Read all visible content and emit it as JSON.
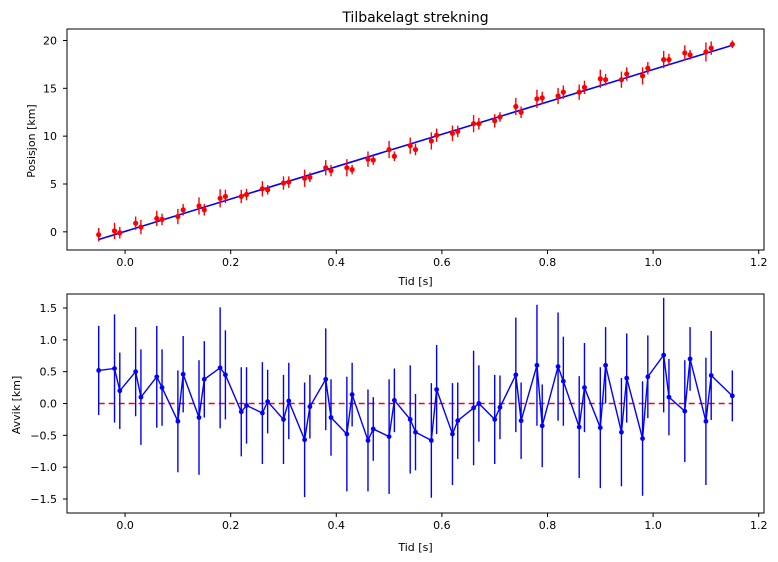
{
  "chart_data": [
    {
      "type": "scatter",
      "title": "Tilbakelagt strekning",
      "xlabel": "Tid [s]",
      "ylabel": "Posisjon [km]",
      "xlim": [
        -0.11,
        1.21
      ],
      "ylim": [
        -1.9,
        21.2
      ],
      "xticks": [
        0.0,
        0.2,
        0.4,
        0.6,
        0.8,
        1.0,
        1.2
      ],
      "xtick_labels": [
        "0.0",
        "0.2",
        "0.4",
        "0.6",
        "0.8",
        "1.0",
        "1.2"
      ],
      "yticks": [
        0,
        5,
        10,
        15,
        20
      ],
      "ytick_labels": [
        "0",
        "5",
        "10",
        "15",
        "20"
      ],
      "colors": {
        "points": "#ff0000",
        "fit": "#0000ff"
      },
      "fit_line": {
        "x": [
          -0.05,
          1.15
        ],
        "y": [
          -0.8,
          19.5
        ]
      },
      "series": [
        {
          "x": [
            -0.05,
            -0.02,
            -0.01,
            0.02,
            0.03,
            0.06,
            0.07,
            0.1,
            0.11,
            0.14,
            0.15,
            0.18,
            0.19,
            0.22,
            0.23,
            0.26,
            0.27,
            0.3,
            0.31,
            0.34,
            0.35,
            0.38,
            0.39,
            0.42,
            0.43,
            0.46,
            0.47,
            0.5,
            0.51,
            0.54,
            0.55,
            0.58,
            0.59,
            0.62,
            0.63,
            0.66,
            0.67,
            0.7,
            0.71,
            0.74,
            0.75,
            0.78,
            0.79,
            0.82,
            0.83,
            0.86,
            0.87,
            0.9,
            0.91,
            0.94,
            0.95,
            0.98,
            0.99,
            1.02,
            1.03,
            1.06,
            1.07,
            1.1,
            1.11,
            1.15
          ],
          "y": [
            -0.3,
            0.1,
            -0.1,
            0.9,
            0.5,
            1.4,
            1.3,
            1.6,
            2.3,
            2.7,
            2.3,
            3.5,
            3.7,
            3.7,
            3.9,
            4.5,
            4.4,
            5.1,
            5.2,
            5.6,
            5.7,
            6.7,
            6.4,
            6.7,
            6.5,
            7.6,
            7.5,
            8.6,
            7.9,
            9.0,
            8.6,
            9.5,
            10.1,
            10.3,
            10.5,
            11.3,
            11.3,
            11.6,
            12.0,
            13.1,
            12.5,
            13.9,
            14.0,
            14.2,
            14.6,
            14.6,
            15.1,
            16.0,
            15.9,
            15.9,
            16.5,
            16.3,
            17.1,
            18.0,
            18.0,
            18.7,
            18.5,
            18.8,
            19.2,
            19.6
          ],
          "err": [
            0.7,
            0.85,
            0.6,
            0.7,
            0.75,
            0.8,
            0.6,
            0.8,
            0.6,
            0.9,
            0.6,
            0.95,
            0.7,
            0.7,
            0.6,
            0.8,
            0.5,
            0.7,
            0.6,
            0.9,
            0.5,
            0.8,
            0.6,
            0.9,
            0.5,
            0.8,
            0.5,
            0.9,
            0.5,
            0.85,
            0.6,
            0.9,
            0.7,
            0.8,
            0.6,
            0.9,
            0.6,
            0.7,
            0.5,
            0.9,
            0.6,
            0.95,
            0.65,
            0.85,
            0.7,
            0.8,
            0.7,
            0.95,
            0.6,
            0.85,
            0.7,
            0.9,
            0.65,
            0.9,
            0.6,
            0.8,
            0.5,
            1.0,
            0.7,
            0.4
          ]
        }
      ],
      "grid": false,
      "legend": "none"
    },
    {
      "type": "line",
      "title": "",
      "xlabel": "Tid [s]",
      "ylabel": "Avvik [km]",
      "xlim": [
        -0.11,
        1.21
      ],
      "ylim": [
        -1.72,
        1.72
      ],
      "xticks": [
        0.0,
        0.2,
        0.4,
        0.6,
        0.8,
        1.0,
        1.2
      ],
      "xtick_labels": [
        "0.0",
        "0.2",
        "0.4",
        "0.6",
        "0.8",
        "1.0",
        "1.2"
      ],
      "yticks": [
        -1.5,
        -1.0,
        -0.5,
        0.0,
        0.5,
        1.0,
        1.5
      ],
      "ytick_labels": [
        "−1.5",
        "−1.0",
        "−0.5",
        "0.0",
        "0.5",
        "1.0",
        "1.5"
      ],
      "colors": {
        "series": "#0000ff",
        "zero_line": "#ff0000"
      },
      "reference_line": {
        "y": 0.0,
        "style": "dashed"
      },
      "series": [
        {
          "x": [
            -0.05,
            -0.02,
            -0.01,
            0.02,
            0.03,
            0.06,
            0.07,
            0.1,
            0.11,
            0.14,
            0.15,
            0.18,
            0.19,
            0.22,
            0.23,
            0.26,
            0.27,
            0.3,
            0.31,
            0.34,
            0.35,
            0.38,
            0.39,
            0.42,
            0.43,
            0.46,
            0.47,
            0.5,
            0.51,
            0.54,
            0.55,
            0.58,
            0.59,
            0.62,
            0.63,
            0.66,
            0.67,
            0.7,
            0.71,
            0.74,
            0.75,
            0.78,
            0.79,
            0.82,
            0.83,
            0.86,
            0.87,
            0.9,
            0.91,
            0.94,
            0.95,
            0.98,
            0.99,
            1.02,
            1.03,
            1.06,
            1.07,
            1.1,
            1.11,
            1.15
          ],
          "y": [
            0.52,
            0.55,
            0.2,
            0.5,
            0.1,
            0.42,
            0.25,
            -0.28,
            0.46,
            -0.22,
            0.38,
            0.56,
            0.45,
            -0.13,
            -0.03,
            -0.15,
            0.03,
            -0.25,
            0.04,
            -0.57,
            -0.05,
            0.38,
            -0.22,
            -0.48,
            0.14,
            -0.58,
            -0.4,
            -0.52,
            0.05,
            -0.25,
            -0.45,
            -0.58,
            0.22,
            -0.48,
            -0.27,
            -0.07,
            0.0,
            -0.25,
            -0.06,
            0.45,
            -0.27,
            0.6,
            -0.35,
            0.58,
            0.35,
            -0.37,
            0.25,
            -0.38,
            0.6,
            -0.45,
            0.4,
            -0.55,
            0.42,
            0.76,
            0.1,
            -0.12,
            0.7,
            -0.28,
            0.44,
            0.12
          ]
        }
      ],
      "grid": false,
      "legend": "none"
    }
  ]
}
